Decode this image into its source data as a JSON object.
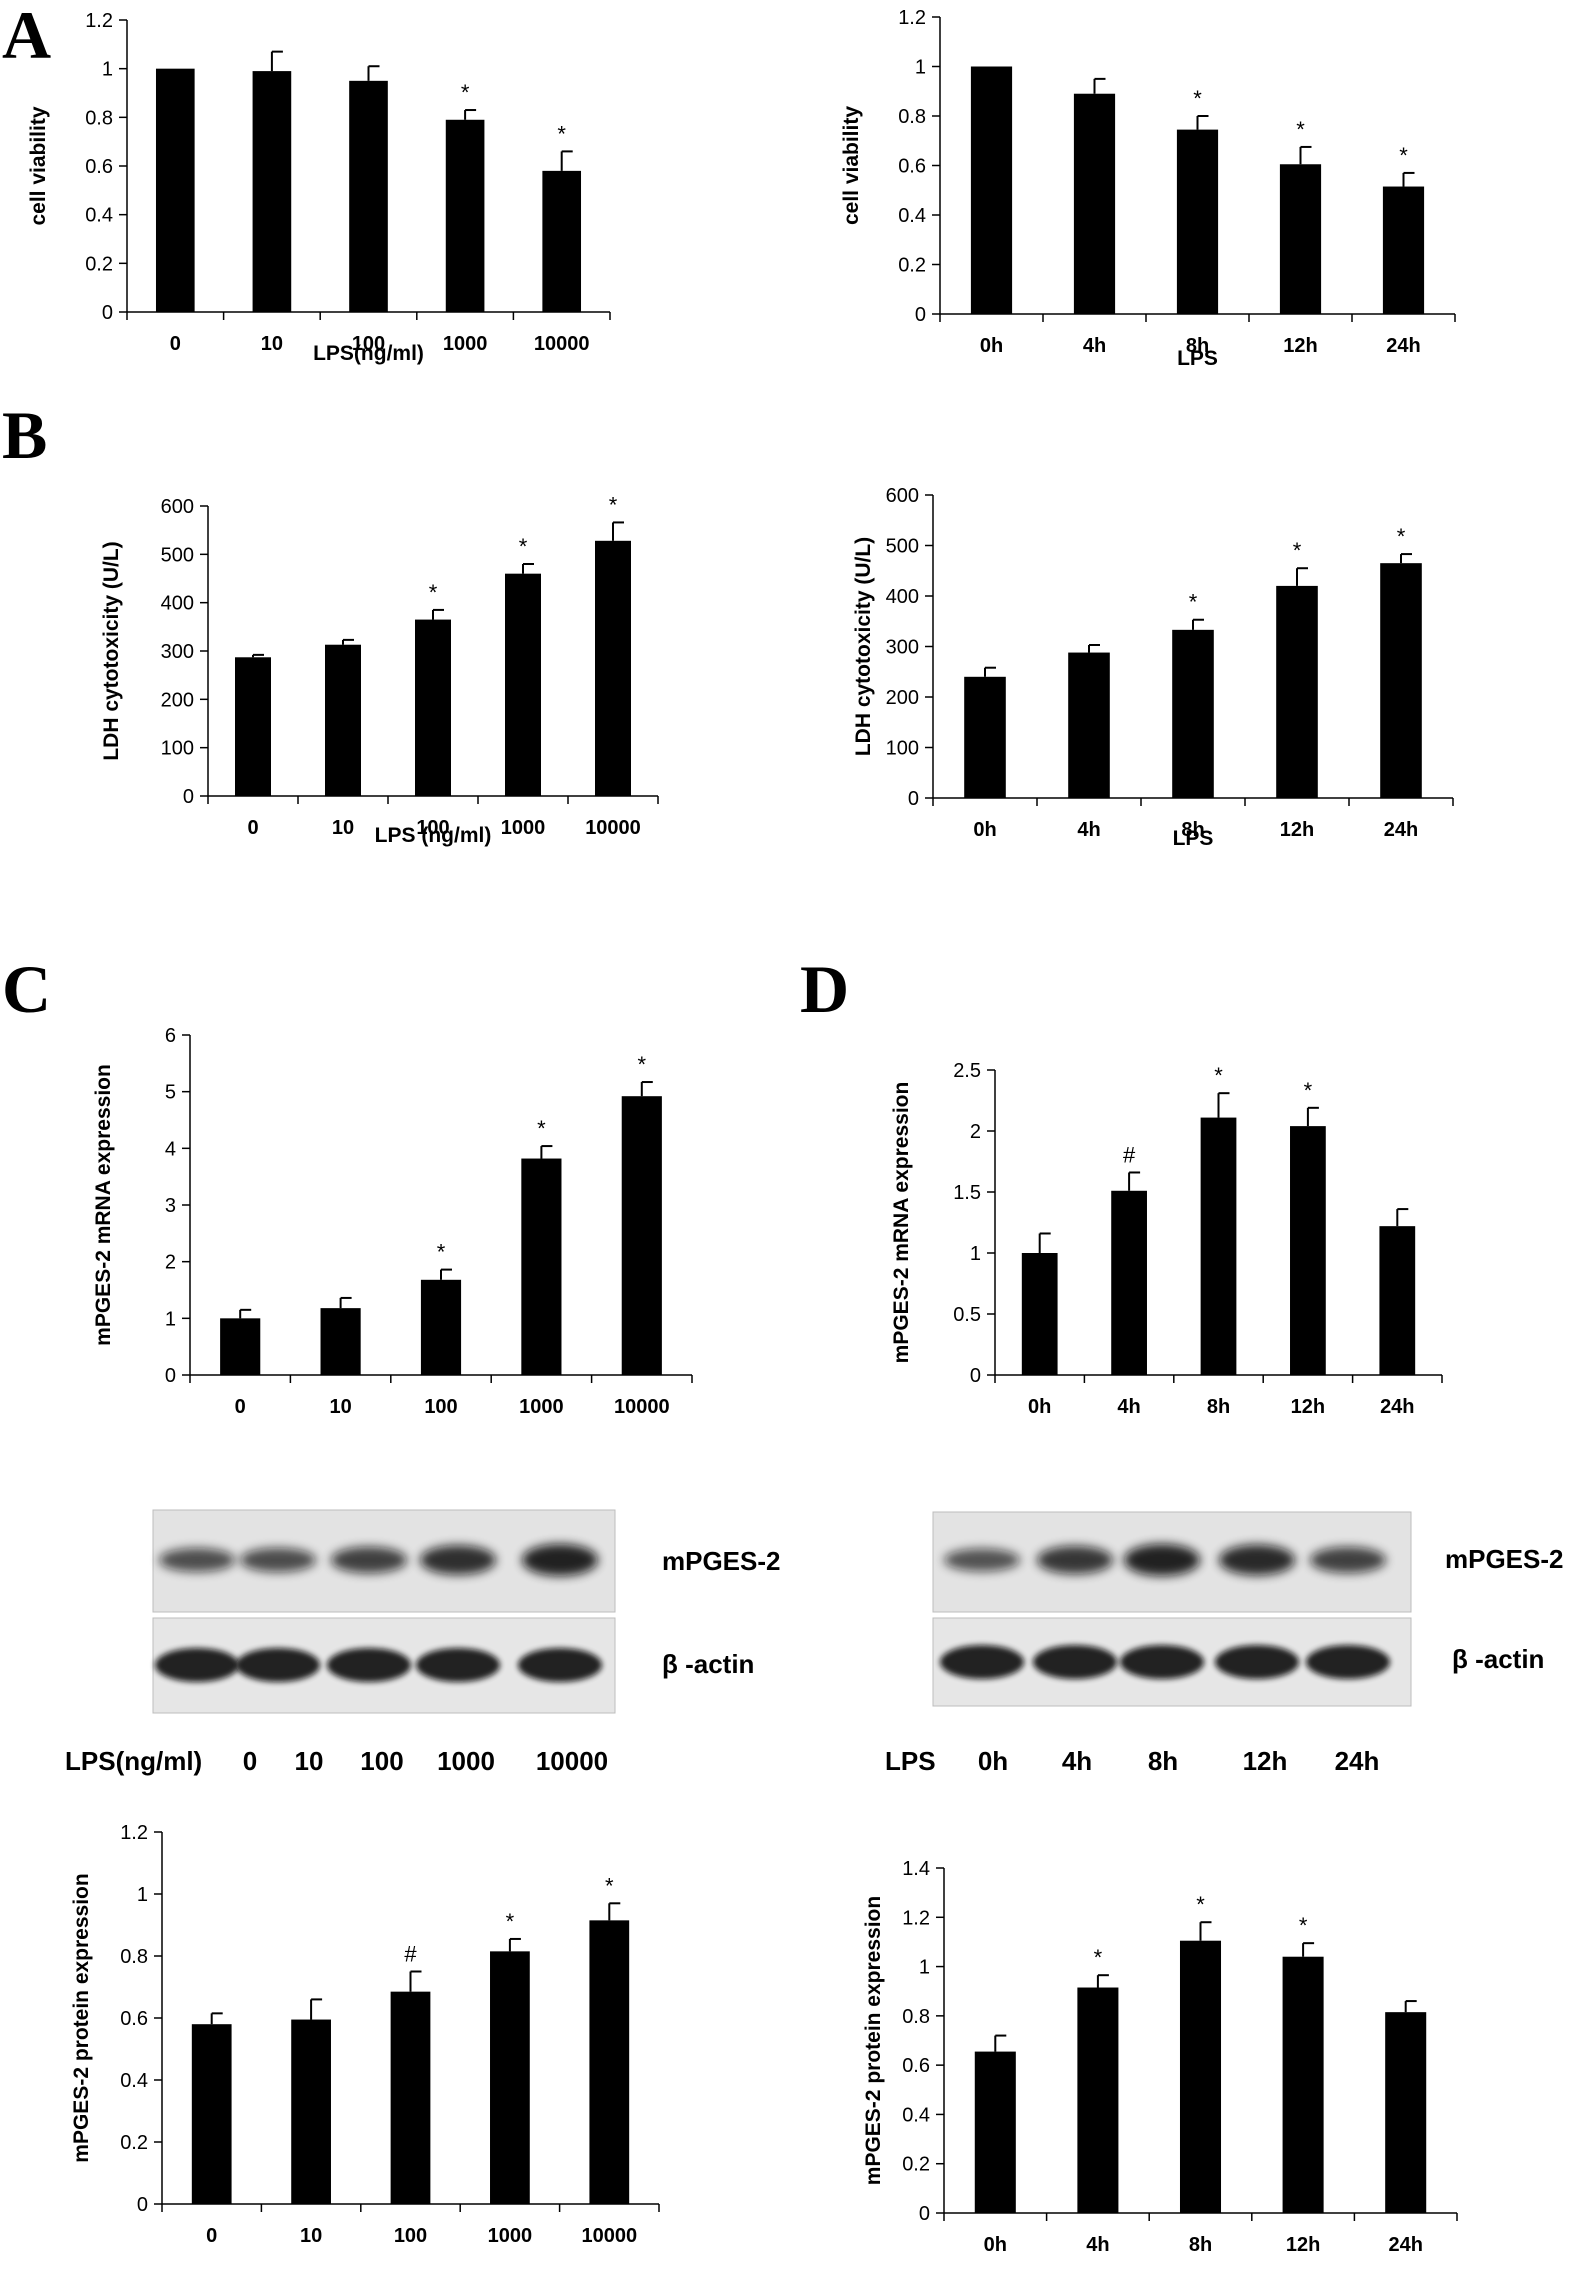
{
  "panel_letters": [
    "A",
    "B",
    "C",
    "D"
  ],
  "chart_data": [
    {
      "type": "bar",
      "xlabel": "LPS(ng/ml)",
      "ylabel": "cell viability",
      "categories": [
        "0",
        "10",
        "100",
        "1000",
        "10000"
      ],
      "values": [
        1.0,
        0.99,
        0.95,
        0.79,
        0.58
      ],
      "errors": [
        0,
        0.08,
        0.06,
        0.04,
        0.08
      ],
      "annotations": [
        "",
        "",
        "",
        "*",
        "*"
      ],
      "ylim": [
        0,
        1.2
      ],
      "yticks": [
        "0",
        "0.2",
        "0.4",
        "0.6",
        "0.8",
        "1",
        "1.2"
      ]
    },
    {
      "type": "bar",
      "xlabel": "LPS",
      "ylabel": "cell viability",
      "categories": [
        "0h",
        "4h",
        "8h",
        "12h",
        "24h"
      ],
      "values": [
        1.0,
        0.89,
        0.745,
        0.605,
        0.515
      ],
      "errors": [
        0,
        0.06,
        0.055,
        0.07,
        0.055
      ],
      "annotations": [
        "",
        "",
        "*",
        "*",
        "*"
      ],
      "ylim": [
        0,
        1.2
      ],
      "yticks": [
        "0",
        "0.2",
        "0.4",
        "0.6",
        "0.8",
        "1",
        "1.2"
      ]
    },
    {
      "type": "bar",
      "xlabel": "LPS (ng/ml)",
      "ylabel": "LDH cytotoxicity (U/L)",
      "categories": [
        "0",
        "10",
        "100",
        "1000",
        "10000"
      ],
      "values": [
        287,
        313,
        365,
        460,
        528
      ],
      "errors": [
        5,
        10,
        20,
        20,
        38
      ],
      "annotations": [
        "",
        "",
        "*",
        "*",
        "*"
      ],
      "ylim": [
        0,
        600
      ],
      "yticks": [
        "0",
        "100",
        "200",
        "300",
        "400",
        "500",
        "600"
      ]
    },
    {
      "type": "bar",
      "xlabel": "LPS",
      "ylabel": "LDH cytotoxicity (U/L)",
      "categories": [
        "0h",
        "4h",
        "8h",
        "12h",
        "24h"
      ],
      "values": [
        240,
        288,
        333,
        420,
        465
      ],
      "errors": [
        18,
        15,
        20,
        35,
        18
      ],
      "annotations": [
        "",
        "",
        "*",
        "*",
        "*"
      ],
      "ylim": [
        0,
        600
      ],
      "yticks": [
        "0",
        "100",
        "200",
        "300",
        "400",
        "500",
        "600"
      ]
    },
    {
      "type": "bar",
      "xlabel": "",
      "ylabel": "mPGES-2 mRNA expression",
      "categories": [
        "0",
        "10",
        "100",
        "1000",
        "10000"
      ],
      "values": [
        1.0,
        1.18,
        1.68,
        3.82,
        4.92
      ],
      "errors": [
        0.15,
        0.18,
        0.18,
        0.22,
        0.25
      ],
      "annotations": [
        "",
        "",
        "*",
        "*",
        "*"
      ],
      "ylim": [
        0,
        6
      ],
      "yticks": [
        "0",
        "1",
        "2",
        "3",
        "4",
        "5",
        "6"
      ]
    },
    {
      "type": "bar",
      "xlabel": "",
      "ylabel": "mPGES-2 mRNA expression",
      "categories": [
        "0h",
        "4h",
        "8h",
        "12h",
        "24h"
      ],
      "values": [
        1.0,
        1.51,
        2.11,
        2.04,
        1.22
      ],
      "errors": [
        0.16,
        0.15,
        0.2,
        0.15,
        0.14
      ],
      "annotations": [
        "",
        "#",
        "*",
        "*",
        ""
      ],
      "ylim": [
        0,
        2.5
      ],
      "yticks": [
        "0",
        "0.5",
        "1",
        "1.5",
        "2",
        "2.5"
      ]
    },
    {
      "type": "bar",
      "xlabel": "",
      "ylabel": "mPGES-2 protein expression",
      "categories": [
        "0",
        "10",
        "100",
        "1000",
        "10000"
      ],
      "values": [
        0.58,
        0.595,
        0.685,
        0.815,
        0.915
      ],
      "errors": [
        0.035,
        0.065,
        0.065,
        0.04,
        0.055
      ],
      "annotations": [
        "",
        "",
        "#",
        "*",
        "*"
      ],
      "ylim": [
        0,
        1.2
      ],
      "yticks": [
        "0",
        "0.2",
        "0.4",
        "0.6",
        "0.8",
        "1",
        "1.2"
      ]
    },
    {
      "type": "bar",
      "xlabel": "",
      "ylabel": "mPGES-2 protein expression",
      "categories": [
        "0h",
        "4h",
        "8h",
        "12h",
        "24h"
      ],
      "values": [
        0.655,
        0.915,
        1.105,
        1.04,
        0.815
      ],
      "errors": [
        0.065,
        0.05,
        0.075,
        0.055,
        0.045
      ],
      "annotations": [
        "",
        "*",
        "*",
        "*",
        ""
      ],
      "ylim": [
        0,
        1.4
      ],
      "yticks": [
        "0",
        "0.2",
        "0.4",
        "0.6",
        "0.8",
        "1",
        "1.2",
        "1.4"
      ]
    }
  ],
  "blots": [
    {
      "band_labels": [
        "mPGES-2",
        "β -actin"
      ],
      "lane_prefix": "LPS(ng/ml)",
      "lanes": [
        "0",
        "10",
        "100",
        "1000",
        "10000"
      ]
    },
    {
      "band_labels": [
        "mPGES-2",
        "β -actin"
      ],
      "lane_prefix": "LPS",
      "lanes": [
        "0h",
        "4h",
        "8h",
        "12h",
        "24h"
      ]
    }
  ]
}
